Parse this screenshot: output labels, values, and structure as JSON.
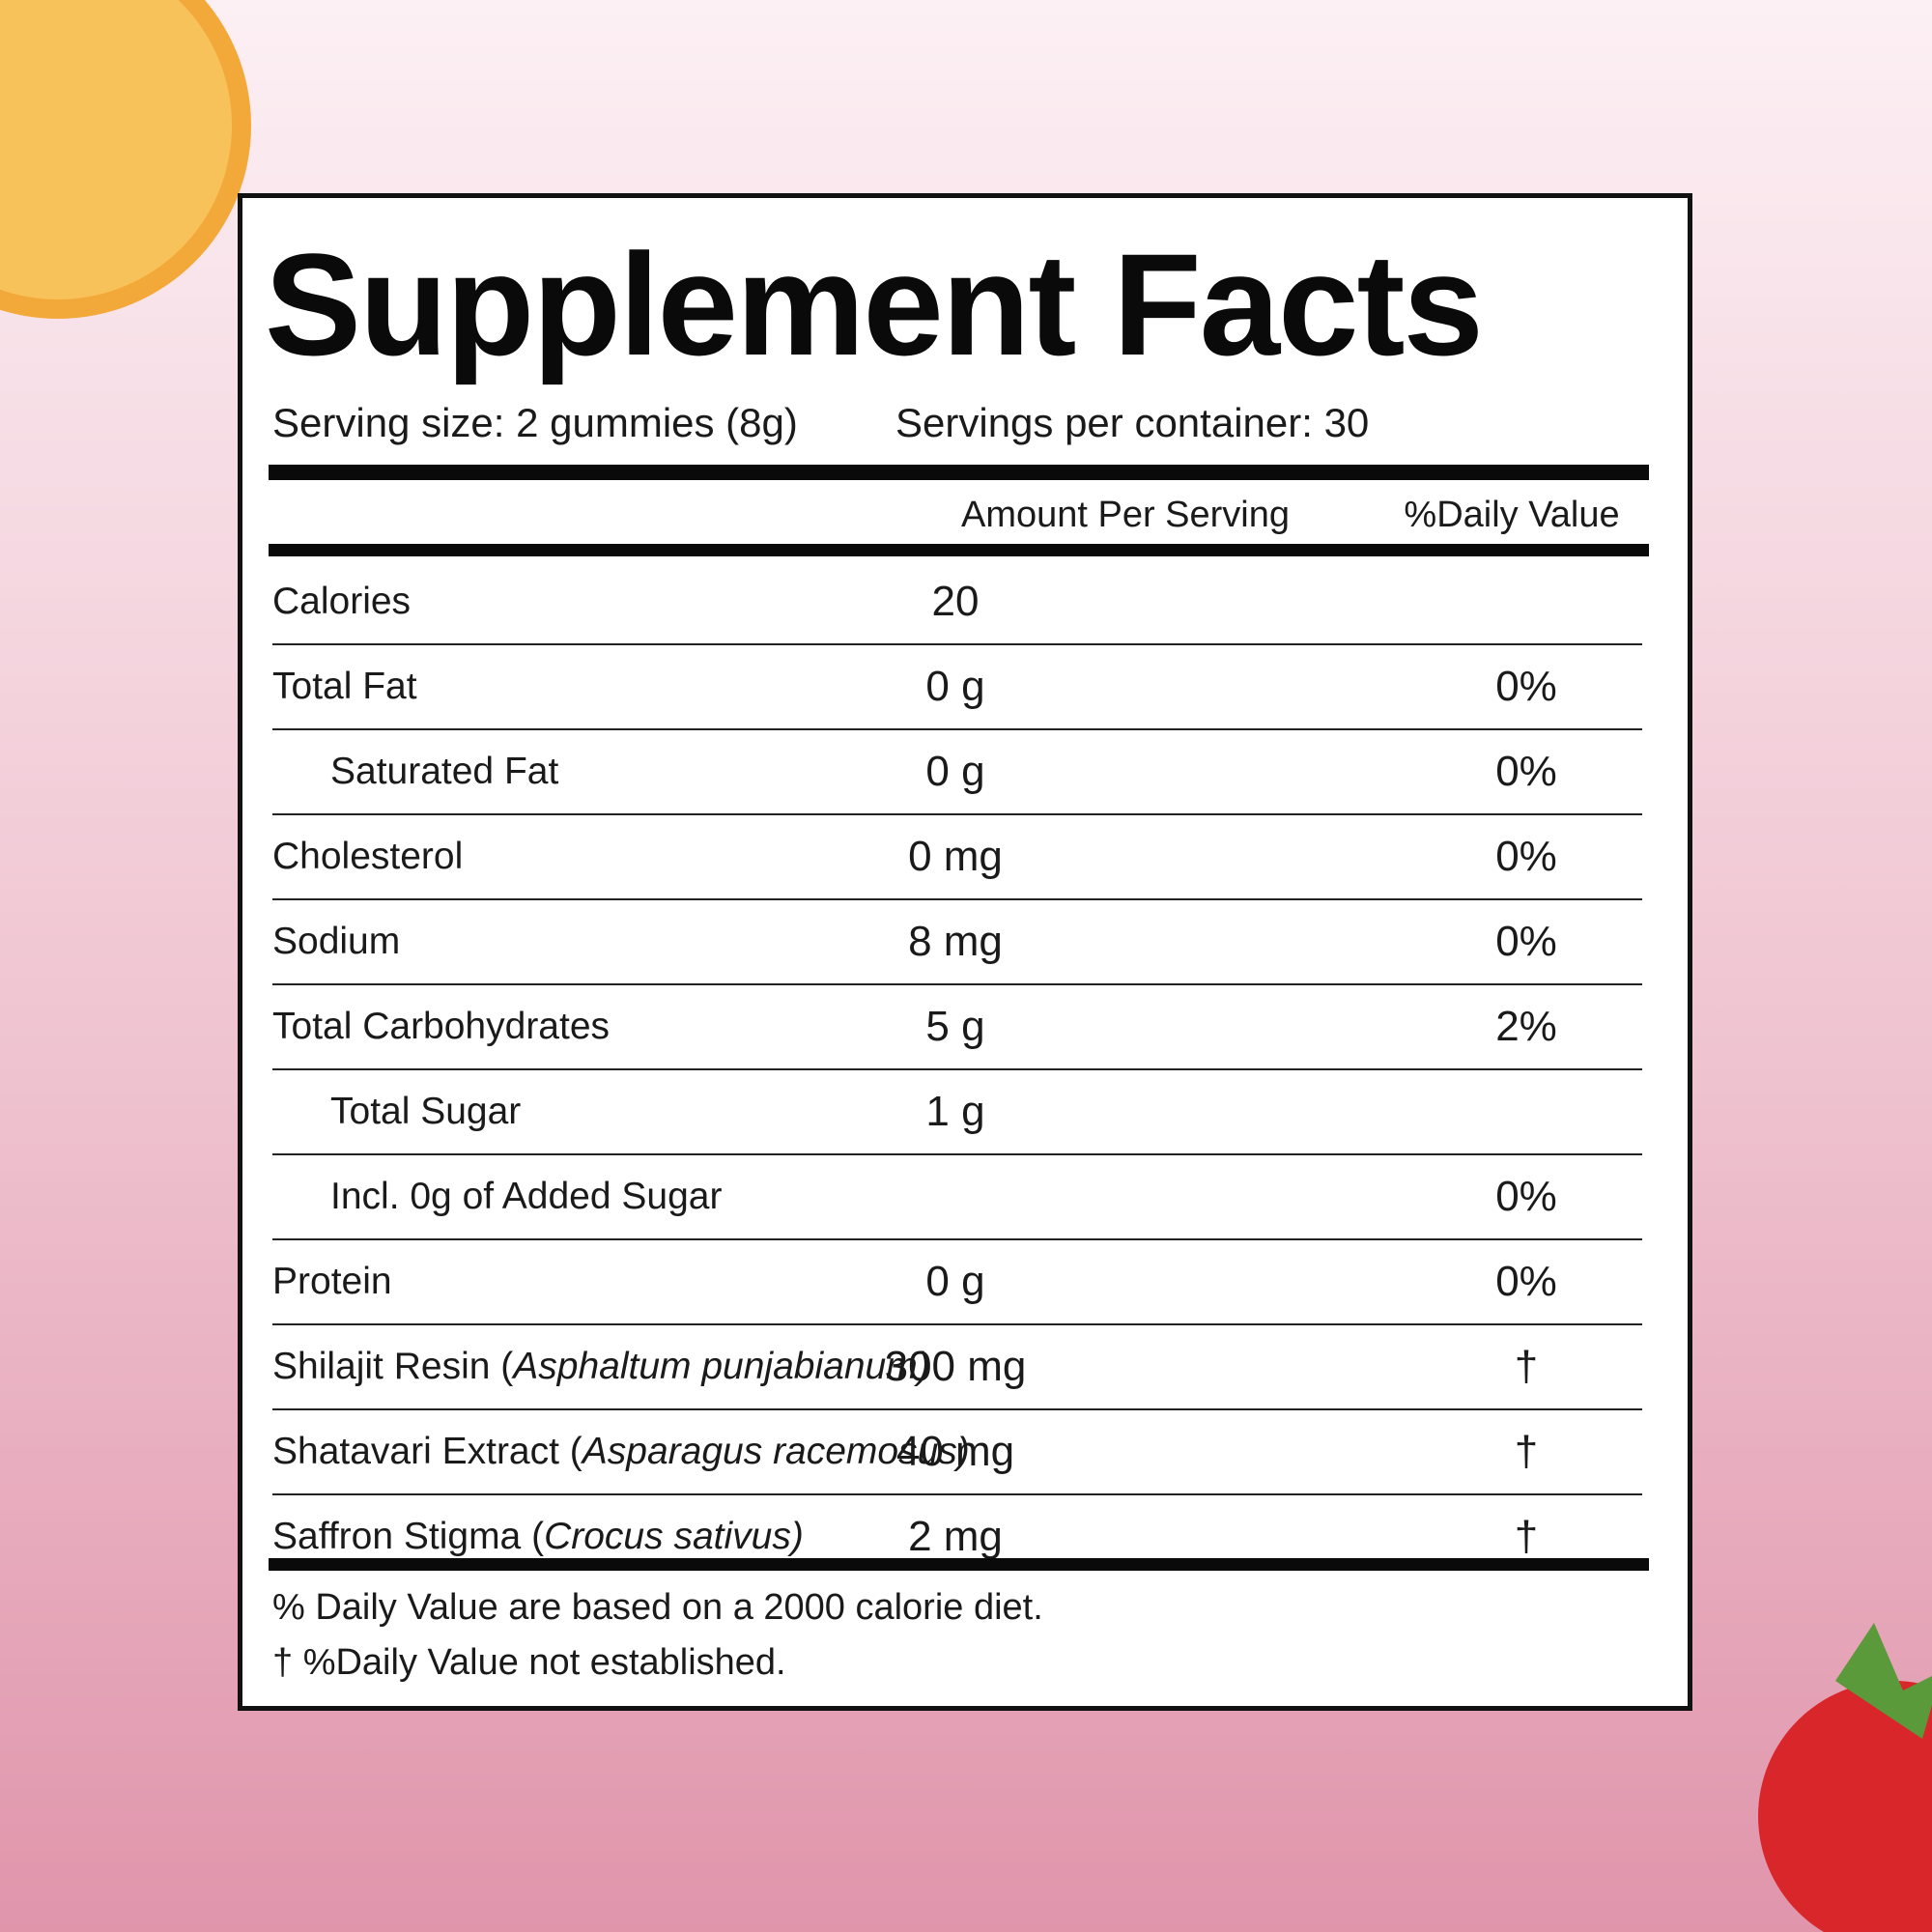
{
  "label": {
    "title": "Supplement Facts",
    "serving_size": "Serving size: 2 gummies (8g)",
    "servings_per_container": "Servings per container: 30",
    "header": {
      "amount": "Amount Per Serving",
      "daily_value": "%Daily Value"
    },
    "rows": [
      {
        "name": "Calories",
        "amount": "20",
        "dv": null,
        "indent": false
      },
      {
        "name": "Total Fat",
        "amount": "0 g",
        "dv": "0%",
        "indent": false
      },
      {
        "name": "Saturated Fat",
        "amount": "0 g",
        "dv": "0%",
        "indent": true
      },
      {
        "name": "Cholesterol",
        "amount": "0 mg",
        "dv": "0%",
        "indent": false
      },
      {
        "name": "Sodium",
        "amount": "8 mg",
        "dv": "0%",
        "indent": false
      },
      {
        "name": "Total Carbohydrates",
        "amount": "5 g",
        "dv": "2%",
        "indent": false
      },
      {
        "name": "Total Sugar",
        "amount": "1 g",
        "dv": null,
        "indent": true
      },
      {
        "name": "Incl. 0g of Added Sugar",
        "amount": null,
        "dv": "0%",
        "indent": true
      },
      {
        "name": "Protein",
        "amount": "0 g",
        "dv": "0%",
        "indent": false
      },
      {
        "name": "Shilajit Resin (",
        "italic": "Asphaltum punjabianum)",
        "amount": "300 mg",
        "dv": "†",
        "indent": false
      },
      {
        "name": "Shatavari Extract (",
        "italic": "Asparagus racemosus)",
        "amount": "40 mg",
        "dv": "†",
        "indent": false
      },
      {
        "name": "Saffron Stigma (",
        "italic": "Crocus sativus)",
        "amount": "2 mg",
        "dv": "†",
        "indent": false
      }
    ],
    "footnotes": [
      "% Daily Value are based on a 2000 calorie diet.",
      "† %Daily Value not established."
    ]
  }
}
